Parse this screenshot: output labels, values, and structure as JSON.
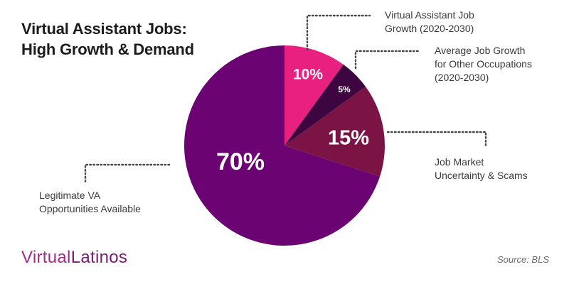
{
  "header": {
    "title_line1": "Virtual Assistant Jobs:",
    "title_line2": "High Growth & Demand"
  },
  "chart_data": {
    "type": "pie",
    "slices": [
      {
        "label_lines": [
          "Virtual Assistant Job",
          "Growth (2020-2030)"
        ],
        "value": 10,
        "display": "10%",
        "color": "#e8207f"
      },
      {
        "label_lines": [
          "Average Job Growth",
          "for Other Occupations",
          "(2020-2030)"
        ],
        "value": 5,
        "display": "5%",
        "color": "#3d0640"
      },
      {
        "label_lines": [
          "Job Market",
          "Uncertainty & Scams"
        ],
        "value": 15,
        "display": "15%",
        "color": "#7b1345"
      },
      {
        "label_lines": [
          "Legitimate VA",
          "Opportunities Available"
        ],
        "value": 70,
        "display": "70%",
        "color": "#6c0373"
      }
    ]
  },
  "footer": {
    "brand_light": "Virtual",
    "brand_bold": "Latinos",
    "source": "Source: BLS"
  }
}
